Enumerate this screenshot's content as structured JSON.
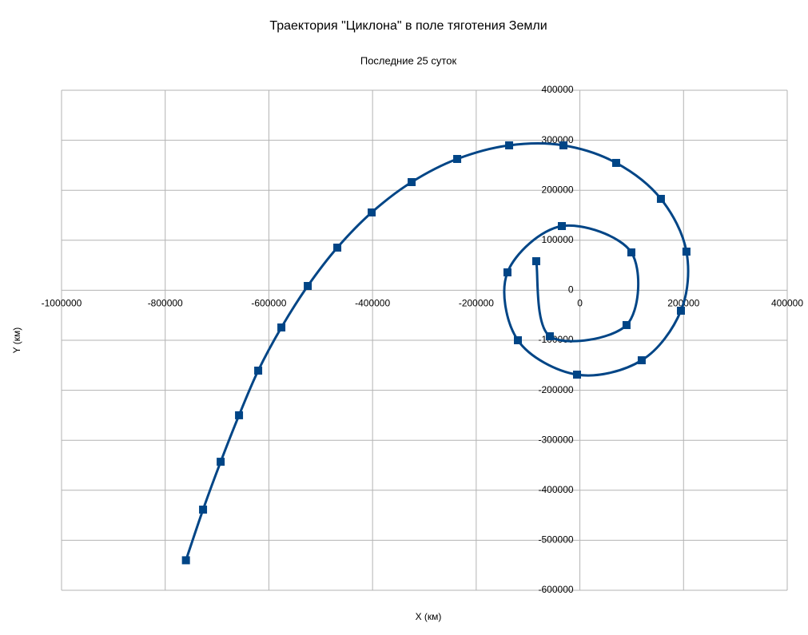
{
  "chart_data": {
    "type": "scatter",
    "title": "Траектория \"Циклона\" в поле тяготения Земли",
    "subtitle": "Последние 25 суток",
    "x_label": "X (км)",
    "y_label": "Y (км)",
    "x": [
      -760000,
      -727000,
      -693000,
      -657600,
      -620600,
      -575900,
      -525000,
      -468000,
      -401700,
      -324600,
      -236700,
      -136500,
      -31700,
      70000,
      156300,
      205600,
      194900,
      119300,
      -5500,
      -119600,
      -139700,
      -34800,
      99300,
      90000,
      -58000,
      -84200
    ],
    "values": [
      -540000,
      -438700,
      -343000,
      -250000,
      -160700,
      -74400,
      8600,
      85300,
      155600,
      216300,
      262600,
      289800,
      289800,
      254700,
      182800,
      77300,
      -40900,
      -140000,
      -168700,
      -100000,
      35800,
      128400,
      75700,
      -69600,
      -92000,
      58100
    ],
    "color": "#004586",
    "xlim": [
      -1000000,
      400000
    ],
    "ylim": [
      -600000,
      400000
    ],
    "xticks": [
      -1000000,
      -800000,
      -600000,
      -400000,
      -200000,
      0,
      200000,
      400000
    ],
    "yticks": [
      -600000,
      -500000,
      -400000,
      -300000,
      -200000,
      -100000,
      0,
      100000,
      200000,
      300000,
      400000
    ],
    "grid": true,
    "smooth": true
  }
}
